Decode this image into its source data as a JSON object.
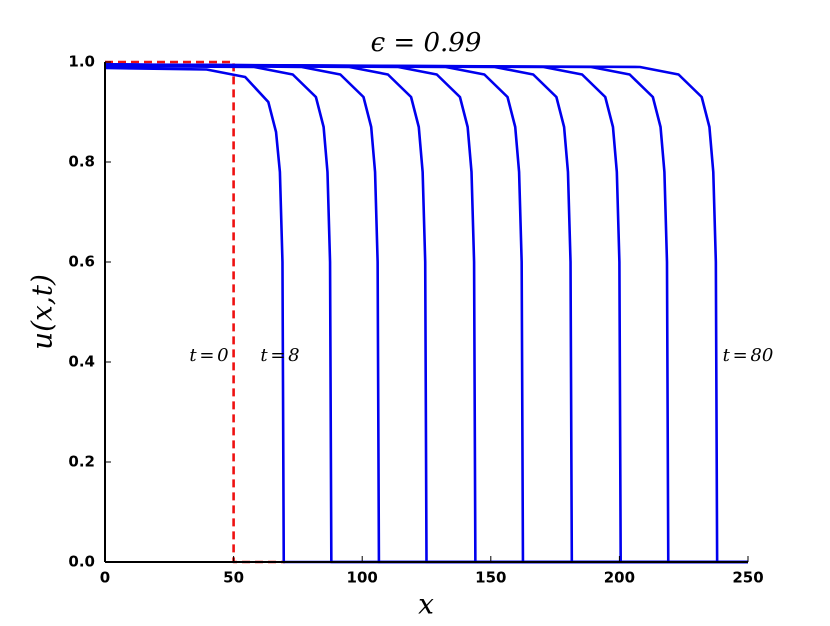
{
  "chart_data": {
    "type": "line",
    "title": "ϵ = 0.99",
    "x_label": "x",
    "y_label": "u(x,t)",
    "annotations": [
      "t = 0",
      "t = 8",
      "t = 80"
    ],
    "xlim": [
      0,
      250
    ],
    "ylim": [
      0,
      1
    ],
    "xticks": [
      0,
      50,
      100,
      150,
      200,
      250
    ],
    "yticks": [
      {
        "value": 0,
        "label": "0.0"
      },
      {
        "value": 0.2,
        "label": "0.2"
      },
      {
        "value": 0.4,
        "label": "0.4"
      },
      {
        "value": 0.6,
        "label": "0.6"
      },
      {
        "value": 0.8,
        "label": "0.8"
      },
      {
        "value": 1,
        "label": "1.0"
      }
    ],
    "series": [
      {
        "color": "#ee1111",
        "dashed": true,
        "x": [
          0,
          50,
          50,
          70
        ],
        "values": [
          1,
          1,
          0,
          0
        ]
      },
      {
        "color": "#0000ee",
        "x": [
          0,
          39.5,
          54.5,
          63.5,
          66.5,
          68,
          69,
          69.5,
          250
        ],
        "values": [
          0.988,
          0.985,
          0.97,
          0.92,
          0.86,
          0.78,
          0.6,
          0,
          0
        ]
      },
      {
        "color": "#0000ee",
        "x": [
          0,
          58,
          73,
          82,
          85,
          86.5,
          87.5,
          88,
          250
        ],
        "values": [
          0.992,
          0.99,
          0.975,
          0.93,
          0.87,
          0.78,
          0.6,
          0,
          0
        ]
      },
      {
        "color": "#0000ee",
        "x": [
          0,
          76.5,
          91.5,
          100.5,
          103.5,
          105,
          106,
          106.5,
          250
        ],
        "values": [
          0.995,
          0.99,
          0.975,
          0.93,
          0.87,
          0.78,
          0.6,
          0,
          0
        ]
      },
      {
        "color": "#0000ee",
        "x": [
          0,
          95,
          110,
          119,
          122,
          123.5,
          124.5,
          125,
          250
        ],
        "values": [
          0.995,
          0.99,
          0.975,
          0.93,
          0.87,
          0.78,
          0.6,
          0,
          0
        ]
      },
      {
        "color": "#0000ee",
        "x": [
          0,
          114,
          129,
          138,
          141,
          142.5,
          143.5,
          144,
          250
        ],
        "values": [
          0.995,
          0.99,
          0.975,
          0.93,
          0.87,
          0.78,
          0.6,
          0,
          0
        ]
      },
      {
        "color": "#0000ee",
        "x": [
          0,
          132.5,
          147.5,
          156.5,
          159.5,
          161,
          162,
          162.5,
          250
        ],
        "values": [
          0.995,
          0.99,
          0.975,
          0.93,
          0.87,
          0.78,
          0.6,
          0,
          0
        ]
      },
      {
        "color": "#0000ee",
        "x": [
          0,
          151.5,
          166.5,
          175.5,
          178.5,
          180,
          181,
          181.5,
          250
        ],
        "values": [
          0.995,
          0.99,
          0.975,
          0.93,
          0.87,
          0.78,
          0.6,
          0,
          0
        ]
      },
      {
        "color": "#0000ee",
        "x": [
          0,
          170.5,
          185.5,
          194.5,
          197.5,
          199,
          200,
          200.5,
          250
        ],
        "values": [
          0.995,
          0.99,
          0.975,
          0.93,
          0.87,
          0.78,
          0.6,
          0,
          0
        ]
      },
      {
        "color": "#0000ee",
        "x": [
          0,
          189,
          204,
          213,
          216,
          217.5,
          218.5,
          219,
          250
        ],
        "values": [
          0.995,
          0.99,
          0.975,
          0.93,
          0.87,
          0.78,
          0.6,
          0,
          0
        ]
      },
      {
        "color": "#0000ee",
        "x": [
          0,
          208,
          223,
          232,
          235,
          236.5,
          237.5,
          238,
          250
        ],
        "values": [
          0.995,
          0.99,
          0.975,
          0.93,
          0.87,
          0.78,
          0.6,
          0,
          0
        ]
      }
    ]
  }
}
